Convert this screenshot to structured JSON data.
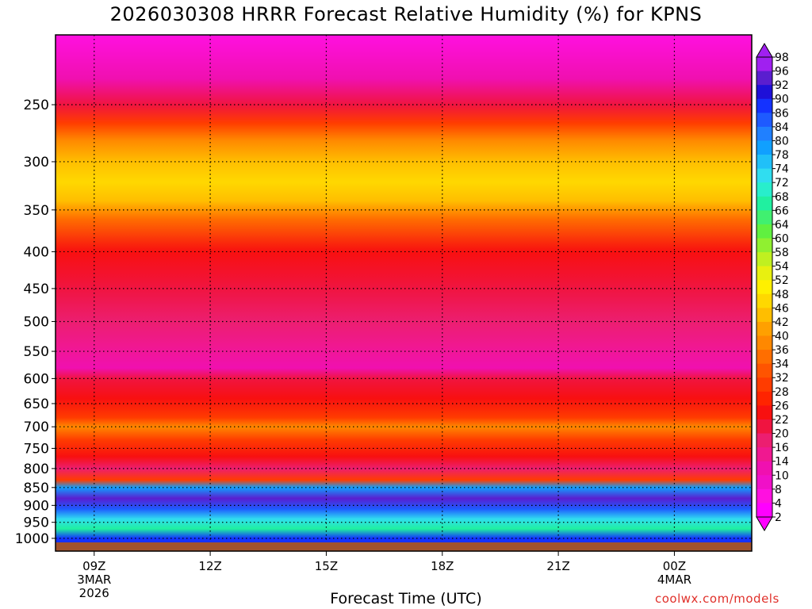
{
  "chart_data": {
    "type": "heatmap",
    "title": "2026030308 HRRR Forecast Relative Humidity (%) for KPNS",
    "xlabel": "Forecast Time (UTC)",
    "credit": "coolwx.com/models",
    "x_ticks": [
      {
        "label": [
          "09Z",
          "3MAR",
          "2026"
        ],
        "hour": 9
      },
      {
        "label": [
          "12Z"
        ],
        "hour": 12
      },
      {
        "label": [
          "15Z"
        ],
        "hour": 15
      },
      {
        "label": [
          "18Z"
        ],
        "hour": 18
      },
      {
        "label": [
          "21Z"
        ],
        "hour": 21
      },
      {
        "label": [
          "00Z",
          "4MAR"
        ],
        "hour": 24
      }
    ],
    "xlim_hours": [
      8,
      26
    ],
    "y_ticks": [
      250,
      300,
      350,
      400,
      450,
      500,
      550,
      600,
      650,
      700,
      750,
      800,
      850,
      900,
      950,
      1000
    ],
    "ylim_hPa": [
      1013,
      200
    ],
    "y_scale": "log",
    "grid": true,
    "colorbar": {
      "labels": [
        98,
        96,
        92,
        90,
        86,
        84,
        80,
        78,
        74,
        72,
        68,
        66,
        64,
        60,
        58,
        54,
        52,
        48,
        46,
        42,
        40,
        36,
        34,
        32,
        28,
        26,
        22,
        20,
        16,
        14,
        10,
        8,
        4,
        2
      ],
      "colors": [
        "#a020f0",
        "#5a1ecf",
        "#1e10d8",
        "#1432ff",
        "#1e5aff",
        "#2080ff",
        "#10a0ff",
        "#20c0f8",
        "#30ddf0",
        "#28eecc",
        "#20f0a0",
        "#40f070",
        "#60f040",
        "#90f030",
        "#c0f020",
        "#e8f010",
        "#fff000",
        "#ffd800",
        "#ffbe00",
        "#ffa000",
        "#ff8800",
        "#ff6e00",
        "#ff5400",
        "#ff3c00",
        "#ff2400",
        "#f81010",
        "#f01440",
        "#ec1e70",
        "#f01890",
        "#f010b0",
        "#f010c8",
        "#ff10e0",
        "#ff00ff"
      ]
    },
    "ground_color": "#a0522d",
    "profile_hPa": [
      200,
      230,
      250,
      265,
      280,
      300,
      320,
      340,
      360,
      400,
      450,
      500,
      540,
      580,
      600,
      640,
      680,
      700,
      730,
      770,
      800,
      830,
      850,
      880,
      910,
      940,
      970,
      1000
    ],
    "profile_rh": [
      4,
      10,
      20,
      28,
      36,
      42,
      46,
      42,
      34,
      24,
      20,
      16,
      14,
      12,
      20,
      22,
      30,
      36,
      28,
      24,
      16,
      30,
      78,
      92,
      84,
      72,
      66,
      86
    ]
  }
}
